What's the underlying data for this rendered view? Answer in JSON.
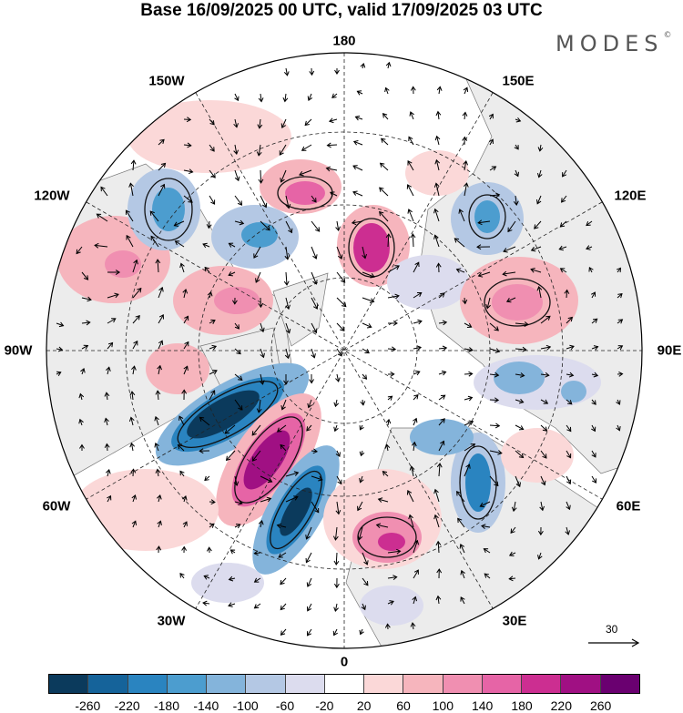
{
  "title": "Base 16/09/2025 00 UTC, valid 17/09/2025 03 UTC",
  "brand": "MODES",
  "brand_mark": "©",
  "longitude_labels": {
    "top": "180",
    "bottom": "0",
    "left": "90W",
    "right": "90E",
    "upper_left": "150W",
    "upper_left_2": "120W",
    "upper_right": "150E",
    "upper_right_2": "120E",
    "lower_left": "60W",
    "lower_left_2": "30W",
    "lower_right": "60E",
    "lower_right_2": "30E"
  },
  "vector_reference": {
    "value": "30"
  },
  "colorbar": {
    "ticks": [
      "-260",
      "-220",
      "-180",
      "-140",
      "-100",
      "-60",
      "-20",
      "20",
      "60",
      "100",
      "140",
      "180",
      "220",
      "260"
    ],
    "colors": [
      "#0b3a5c",
      "#15639a",
      "#2a84c0",
      "#4c9dcf",
      "#84b4db",
      "#b4c8e4",
      "#dcdcee",
      "#ffffff",
      "#fbd8d8",
      "#f6b5bd",
      "#f08fb1",
      "#e664a6",
      "#cc2e91",
      "#a01083",
      "#6a0070"
    ]
  },
  "map_colors": {
    "land": "#ececec",
    "ocean": "#ffffff"
  }
}
